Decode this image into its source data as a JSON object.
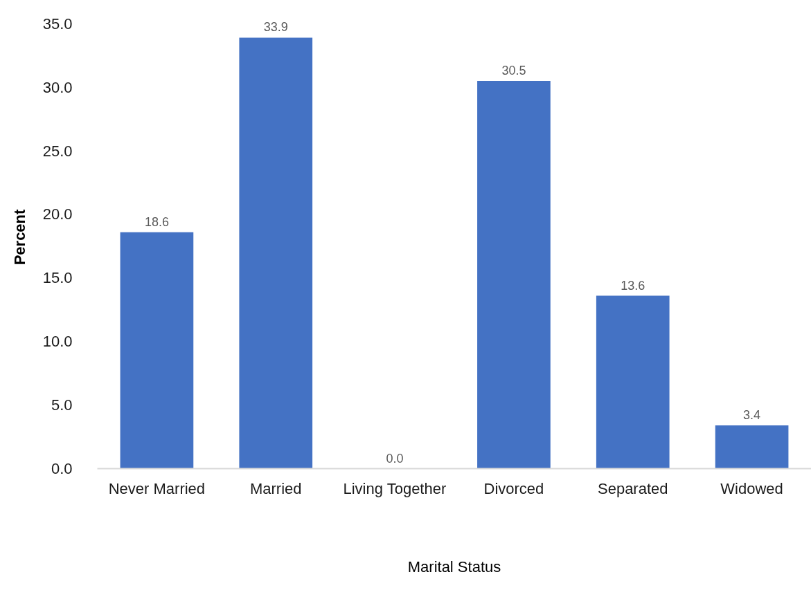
{
  "chart_data": {
    "type": "bar",
    "xlabel": "Marital Status",
    "ylabel": "Percent",
    "categories": [
      "Never Married",
      "Married",
      "Living Together",
      "Divorced",
      "Separated",
      "Widowed"
    ],
    "values": [
      18.6,
      33.9,
      0.0,
      30.5,
      13.6,
      3.4
    ],
    "color": "#4472c4",
    "value_labels": [
      "18.6",
      "33.9",
      "0.0",
      "30.5",
      "13.6",
      "3.4"
    ],
    "ylim": [
      0,
      35
    ],
    "yticks": [
      {
        "value": 0,
        "label": "0.0"
      },
      {
        "value": 5,
        "label": "5.0"
      },
      {
        "value": 10,
        "label": "10.0"
      },
      {
        "value": 15,
        "label": "15.0"
      },
      {
        "value": 20,
        "label": "20.0"
      },
      {
        "value": 25,
        "label": "25.0"
      },
      {
        "value": 30,
        "label": "30.0"
      },
      {
        "value": 35,
        "label": "35.0"
      }
    ],
    "grid": false,
    "legend": false
  }
}
